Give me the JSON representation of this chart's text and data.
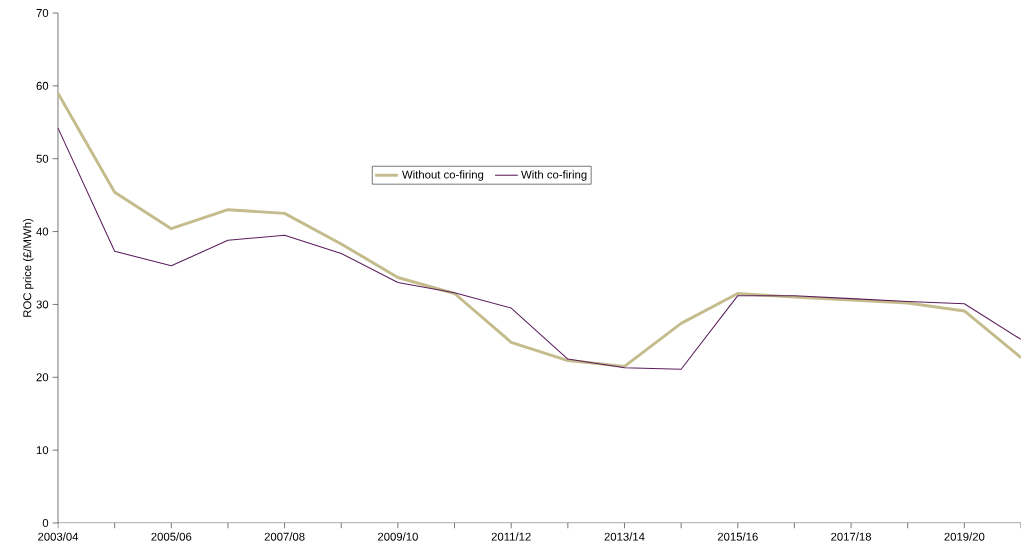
{
  "chart_data": {
    "type": "line",
    "ylabel": "ROC price (£/MWh)",
    "categories": [
      "2003/04",
      null,
      "2005/06",
      null,
      "2007/08",
      null,
      "2009/10",
      null,
      "2011/12",
      null,
      "2013/14",
      null,
      "2015/16",
      null,
      "2017/18",
      null,
      "2019/20",
      null
    ],
    "series": [
      {
        "name": "Without co-firing",
        "color": "#c4bc8c",
        "values": [
          59.0,
          45.4,
          40.4,
          43.0,
          42.5,
          38.3,
          33.7,
          31.5,
          24.8,
          22.3,
          21.5,
          27.4,
          31.5,
          31.0,
          30.6,
          30.2,
          29.1,
          22.7
        ]
      },
      {
        "name": "With co-firing",
        "color": "#5c1f5c",
        "values": [
          54.2,
          37.3,
          35.3,
          38.8,
          39.5,
          37.0,
          33.0,
          31.6,
          29.5,
          22.5,
          21.3,
          21.1,
          31.2,
          31.2,
          30.8,
          30.4,
          30.1,
          25.2
        ]
      }
    ],
    "ylim": [
      0,
      70
    ],
    "yticks": [
      0,
      10,
      20,
      30,
      40,
      50,
      60,
      70
    ],
    "legend": "top",
    "grid": false,
    "marker": "none",
    "line_style": "solid"
  }
}
